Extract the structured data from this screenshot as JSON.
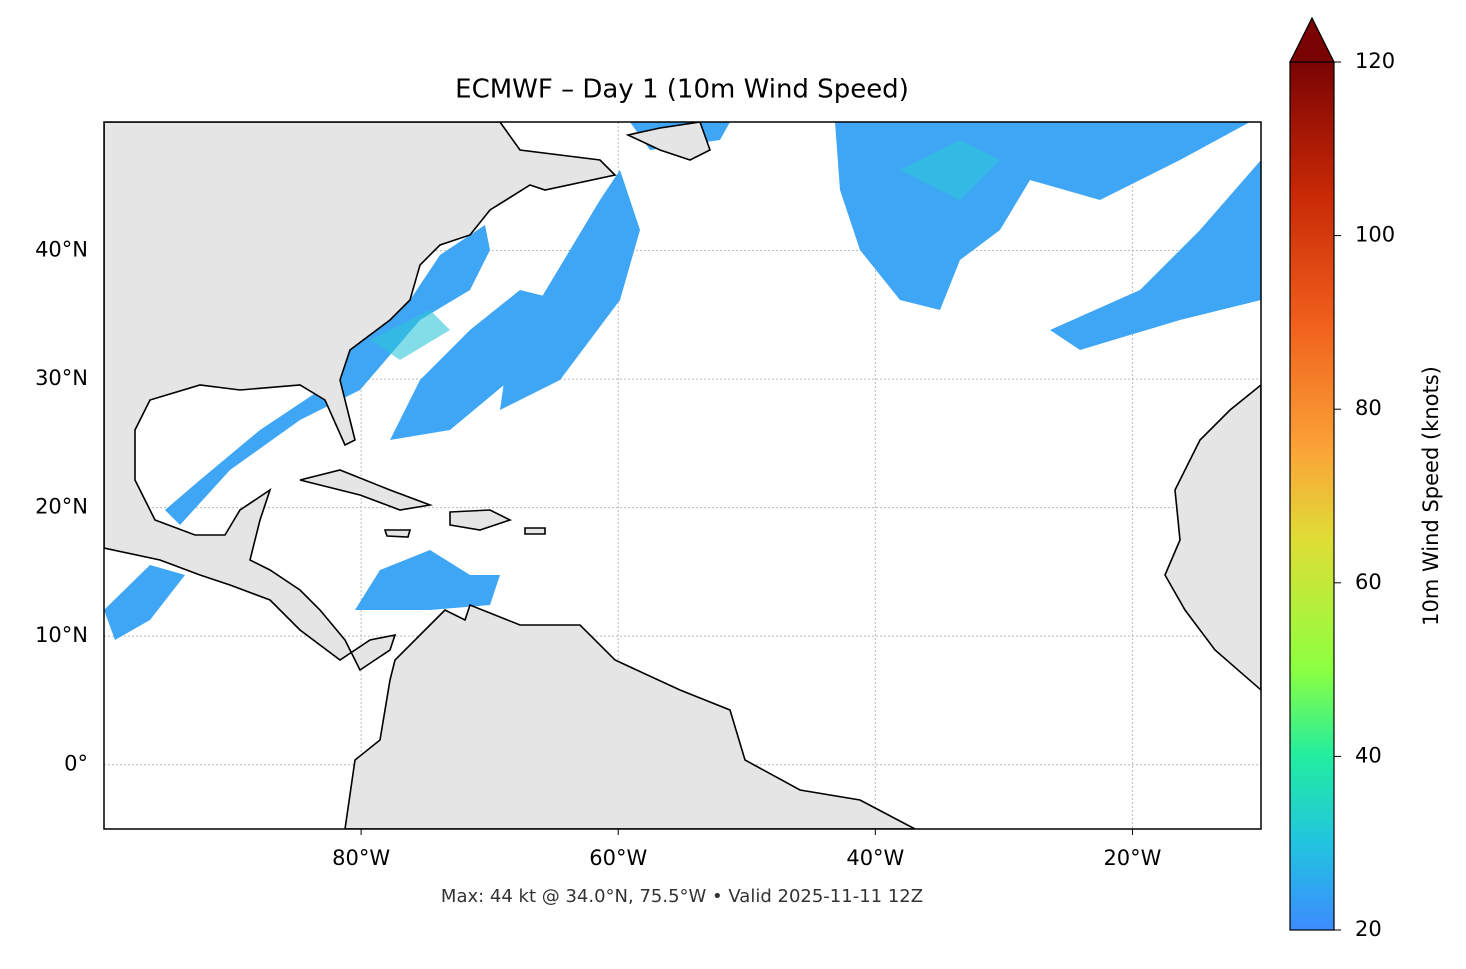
{
  "chart_data": {
    "type": "map",
    "title": "ECMWF – Day 1 (10m Wind Speed)",
    "subtitle": "Max: 44 kt @ 34.0°N, 75.5°W • Valid 2025-11-11 12Z",
    "xlim": [
      -100,
      -10
    ],
    "ylim": [
      -5,
      50
    ],
    "xticks": [
      {
        "value": -80,
        "label": "80°W"
      },
      {
        "value": -60,
        "label": "60°W"
      },
      {
        "value": -40,
        "label": "40°W"
      },
      {
        "value": -20,
        "label": "20°W"
      }
    ],
    "yticks": [
      {
        "value": 0,
        "label": "0°"
      },
      {
        "value": 10,
        "label": "10°N"
      },
      {
        "value": 20,
        "label": "20°N"
      },
      {
        "value": 30,
        "label": "30°N"
      },
      {
        "value": 40,
        "label": "40°N"
      }
    ],
    "grid": true,
    "colorbar": {
      "label": "10m Wind Speed (knots)",
      "clim": [
        20,
        120
      ],
      "ticks": [
        20,
        40,
        60,
        80,
        100,
        120
      ]
    }
  }
}
